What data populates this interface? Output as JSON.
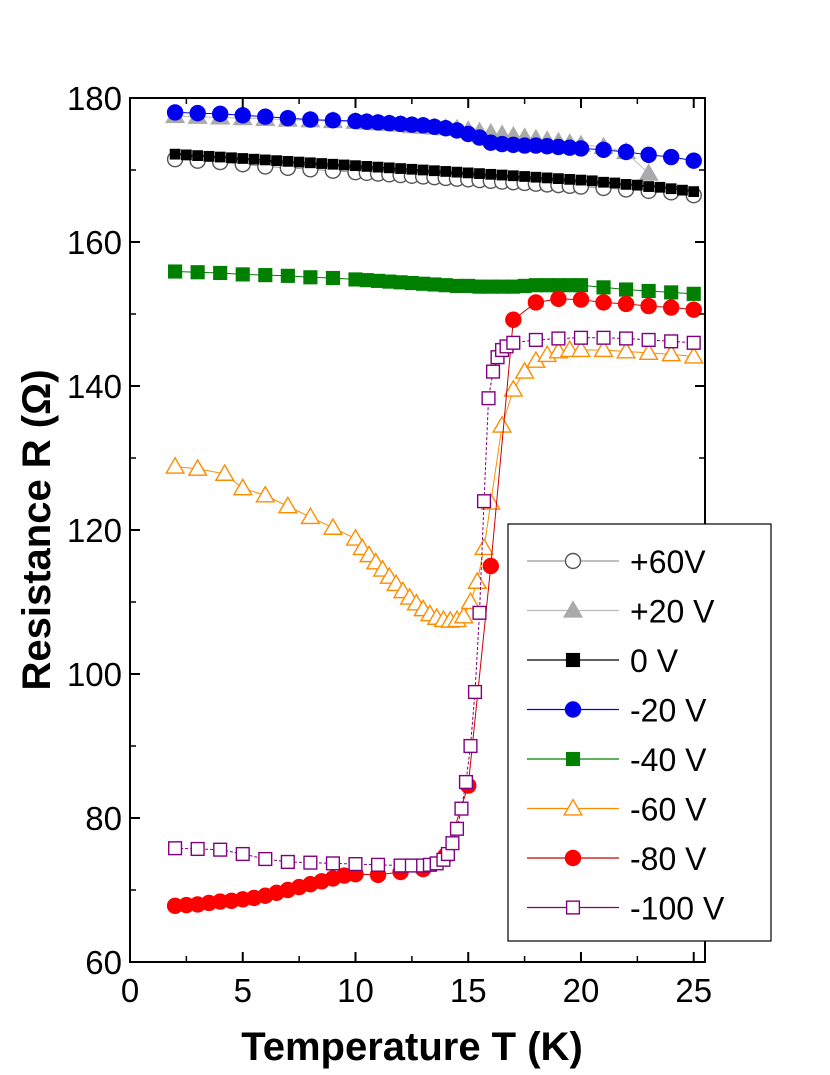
{
  "chart_data": {
    "type": "line",
    "xlabel": "Temperature T (K)",
    "ylabel": "Resistance R (Ω)",
    "xlim": [
      0,
      25.5
    ],
    "ylim": [
      60,
      180
    ],
    "xticks": [
      0,
      5,
      10,
      15,
      20,
      25
    ],
    "yticks": [
      60,
      80,
      100,
      120,
      140,
      160,
      180
    ],
    "grid": false,
    "legend_position": "bottom-right",
    "series": [
      {
        "name": "+60V",
        "color": "#555555",
        "line_color": "#999999",
        "marker": "circle",
        "filled": false,
        "x": [
          2,
          3,
          4,
          5,
          6,
          7,
          8,
          9,
          10,
          10.5,
          11,
          11.5,
          12,
          12.5,
          13,
          13.5,
          14,
          14.5,
          15,
          15.5,
          16,
          16.5,
          17,
          17.5,
          18,
          18.5,
          19,
          19.5,
          20,
          21,
          22,
          23,
          24,
          25
        ],
        "y": [
          171.5,
          171.3,
          171.1,
          170.8,
          170.5,
          170.3,
          170.1,
          169.9,
          169.7,
          169.6,
          169.5,
          169.4,
          169.3,
          169.2,
          169.1,
          169.0,
          168.9,
          168.8,
          168.7,
          168.6,
          168.5,
          168.4,
          168.3,
          168.2,
          168.1,
          168.0,
          167.9,
          167.8,
          167.7,
          167.5,
          167.3,
          167.1,
          166.9,
          166.5
        ]
      },
      {
        "name": "+20 V",
        "color": "#aaaaaa",
        "line_color": "#bbbbbb",
        "marker": "triangle",
        "filled": true,
        "x": [
          2,
          3,
          4,
          5,
          6,
          7,
          8,
          9,
          10,
          10.5,
          11,
          11.5,
          12,
          12.5,
          13,
          13.5,
          14,
          14.5,
          15,
          15.5,
          16,
          16.5,
          17,
          17.5,
          18,
          18.5,
          19,
          19.5,
          20,
          21,
          22,
          23
        ],
        "y": [
          177.5,
          177.4,
          177.3,
          177.2,
          177.1,
          177.0,
          176.9,
          176.8,
          176.7,
          176.6,
          176.5,
          176.4,
          176.3,
          176.1,
          176.0,
          175.9,
          175.8,
          175.7,
          175.5,
          175.3,
          175.1,
          174.9,
          174.7,
          174.5,
          174.3,
          174.1,
          173.9,
          173.7,
          173.5,
          173.2,
          172.5,
          169.5
        ]
      },
      {
        "name": " 0 V",
        "color": "#000000",
        "line_color": "#000000",
        "marker": "square",
        "filled": true,
        "x": [
          2,
          2.5,
          3,
          3.5,
          4,
          4.5,
          5,
          5.5,
          6,
          6.5,
          7,
          7.5,
          8,
          8.5,
          9,
          9.5,
          10,
          10.5,
          11,
          11.5,
          12,
          12.5,
          13,
          13.5,
          14,
          14.5,
          15,
          15.5,
          16,
          16.5,
          17,
          17.5,
          18,
          18.5,
          19,
          19.5,
          20,
          20.5,
          21,
          21.5,
          22,
          22.5,
          23,
          23.5,
          24,
          24.5,
          25
        ],
        "y": [
          172.2,
          172.1,
          172.0,
          171.9,
          171.8,
          171.7,
          171.6,
          171.5,
          171.4,
          171.3,
          171.2,
          171.1,
          171.0,
          170.9,
          170.8,
          170.7,
          170.6,
          170.5,
          170.4,
          170.3,
          170.2,
          170.1,
          170.0,
          169.9,
          169.8,
          169.7,
          169.6,
          169.5,
          169.4,
          169.3,
          169.2,
          169.1,
          169.0,
          168.9,
          168.8,
          168.7,
          168.6,
          168.5,
          168.3,
          168.2,
          168.0,
          167.9,
          167.7,
          167.6,
          167.4,
          167.2,
          167.0
        ]
      },
      {
        "name": "-20 V",
        "color": "#0000ee",
        "line_color": "#0000ee",
        "marker": "circle",
        "filled": true,
        "x": [
          2,
          3,
          4,
          5,
          6,
          7,
          8,
          9,
          10,
          10.5,
          11,
          11.5,
          12,
          12.5,
          13,
          13.5,
          14,
          14.5,
          15,
          15.5,
          16,
          16.5,
          17,
          17.5,
          18,
          18.5,
          19,
          19.5,
          20,
          21,
          22,
          23,
          24,
          25
        ],
        "y": [
          178.0,
          177.9,
          177.8,
          177.6,
          177.4,
          177.2,
          177.0,
          176.9,
          176.8,
          176.7,
          176.6,
          176.5,
          176.4,
          176.3,
          176.2,
          176.0,
          175.8,
          175.5,
          175.0,
          174.5,
          173.8,
          173.6,
          173.5,
          173.4,
          173.4,
          173.3,
          173.2,
          173.1,
          173.0,
          172.8,
          172.5,
          172.1,
          171.8,
          171.3
        ]
      },
      {
        "name": "-40 V",
        "color": "#008000",
        "line_color": "#008000",
        "marker": "square",
        "filled": true,
        "x": [
          2,
          3,
          4,
          5,
          6,
          7,
          8,
          9,
          10,
          10.5,
          11,
          11.5,
          12,
          12.5,
          13,
          13.5,
          14,
          14.5,
          15,
          15.5,
          16,
          16.5,
          17,
          17.5,
          18,
          18.5,
          19,
          19.5,
          20,
          21,
          22,
          23,
          24,
          25
        ],
        "y": [
          155.9,
          155.8,
          155.7,
          155.5,
          155.4,
          155.3,
          155.1,
          155.0,
          154.8,
          154.7,
          154.6,
          154.5,
          154.4,
          154.3,
          154.2,
          154.1,
          154.0,
          153.9,
          153.9,
          153.8,
          153.8,
          153.8,
          153.8,
          153.9,
          154.0,
          154.0,
          154.0,
          154.0,
          154.0,
          153.7,
          153.4,
          153.2,
          153.0,
          152.8
        ]
      },
      {
        "name": "-60 V",
        "color": "#ff8c00",
        "line_color": "#ff8c00",
        "marker": "triangle",
        "filled": false,
        "x": [
          2,
          3,
          4.2,
          5,
          6,
          7,
          8,
          9,
          10,
          10.3,
          10.6,
          10.9,
          11.2,
          11.5,
          11.8,
          12.1,
          12.4,
          12.7,
          13,
          13.3,
          13.6,
          13.9,
          14.2,
          14.5,
          14.8,
          15.1,
          15.4,
          15.7,
          16,
          16.5,
          17,
          17.5,
          18,
          18.5,
          19,
          19.5,
          20,
          21,
          22,
          23,
          24,
          25
        ],
        "y": [
          128.8,
          128.5,
          127.8,
          125.8,
          124.8,
          123.3,
          121.8,
          120.3,
          118.8,
          117.5,
          116.5,
          115.5,
          114.5,
          113.5,
          112.5,
          111.5,
          110.6,
          109.8,
          109.0,
          108.3,
          107.8,
          107.5,
          107.4,
          107.5,
          108.0,
          110.0,
          112.8,
          117.5,
          123.8,
          134.5,
          139.5,
          142.0,
          143.5,
          144.3,
          144.8,
          145.0,
          145.0,
          145.0,
          144.8,
          144.6,
          144.4,
          144.1
        ]
      },
      {
        "name": "-80 V",
        "color": "#ff0000",
        "line_color": "#cc0000",
        "marker": "circle",
        "filled": true,
        "x": [
          2,
          2.5,
          3,
          3.5,
          4,
          4.5,
          5,
          5.5,
          6,
          6.5,
          7,
          7.5,
          8,
          8.5,
          9,
          9.5,
          10,
          11,
          12,
          13,
          14,
          15,
          16,
          17,
          18,
          19,
          20,
          21,
          22,
          23,
          24,
          25
        ],
        "y": [
          67.8,
          67.9,
          68.0,
          68.2,
          68.4,
          68.5,
          68.7,
          68.9,
          69.2,
          69.6,
          70.0,
          70.4,
          70.8,
          71.2,
          71.6,
          72.0,
          72.2,
          72.1,
          72.5,
          72.9,
          74.8,
          84.5,
          115.0,
          149.2,
          151.6,
          152.1,
          152.0,
          151.6,
          151.4,
          151.1,
          150.9,
          150.6
        ]
      },
      {
        "name": "-100 V",
        "color": "#800080",
        "line_color": "#800080",
        "marker": "square",
        "filled": false,
        "x": [
          2,
          3,
          4,
          5,
          6,
          7,
          8,
          9,
          10,
          11,
          12,
          12.5,
          13,
          13.3,
          13.6,
          13.9,
          14.1,
          14.3,
          14.5,
          14.7,
          14.9,
          15.1,
          15.3,
          15.5,
          15.7,
          15.9,
          16.1,
          16.3,
          16.5,
          16.7,
          17,
          18,
          19,
          20,
          21,
          22,
          23,
          24,
          25
        ],
        "y": [
          75.8,
          75.7,
          75.6,
          75.0,
          74.3,
          73.9,
          73.8,
          73.7,
          73.6,
          73.5,
          73.4,
          73.4,
          73.4,
          73.5,
          73.7,
          74.2,
          75.0,
          76.5,
          78.5,
          81.3,
          85.0,
          90.0,
          97.5,
          108.5,
          124.0,
          138.3,
          142.0,
          144.0,
          145.0,
          145.5,
          146.0,
          146.4,
          146.6,
          146.7,
          146.7,
          146.6,
          146.4,
          146.2,
          146.0
        ]
      }
    ]
  }
}
